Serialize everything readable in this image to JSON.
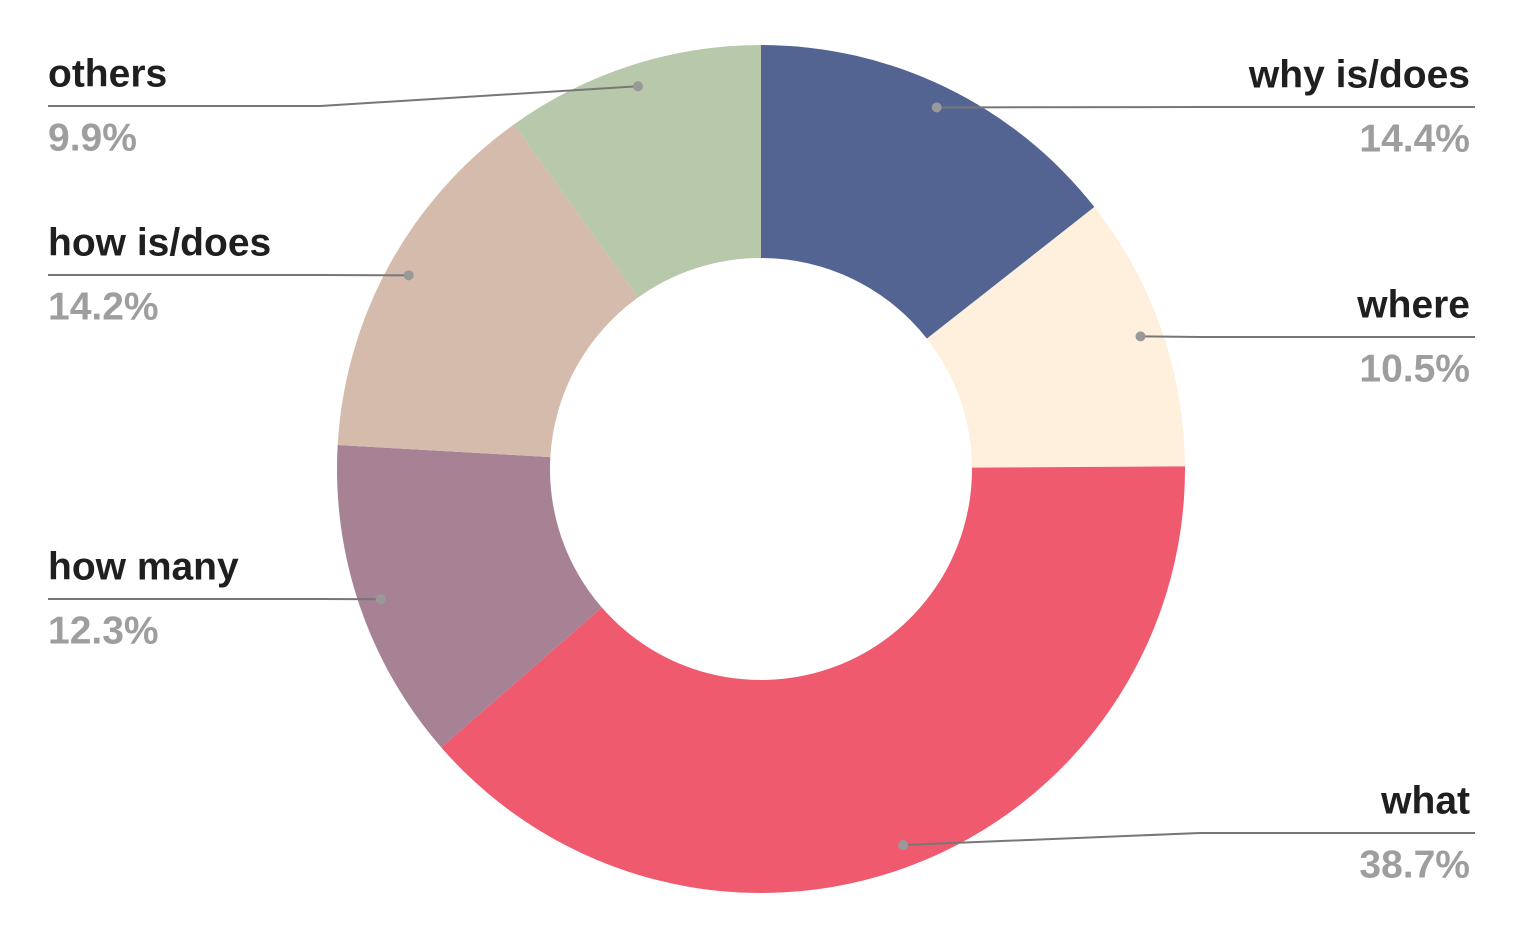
{
  "chart_data": {
    "type": "donut",
    "categories": [
      "why is/does",
      "where",
      "what",
      "how many",
      "how is/does",
      "others"
    ],
    "values": [
      14.4,
      10.5,
      38.7,
      12.3,
      14.2,
      9.9
    ],
    "value_labels": [
      "14.4%",
      "10.5%",
      "38.7%",
      "12.3%",
      "14.2%",
      "9.9%"
    ],
    "colors": [
      "#536493",
      "#fef0dc",
      "#ef5a6f",
      "#a78295",
      "#d5bbac",
      "#b7c8ab"
    ]
  }
}
